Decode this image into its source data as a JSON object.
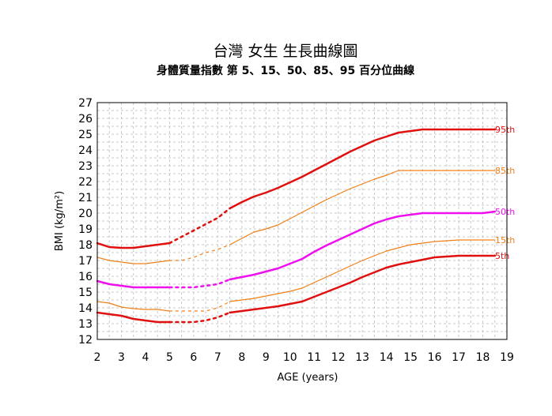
{
  "chart_data": {
    "type": "line",
    "title": "台灣  女生  生長曲線圖",
    "subtitle": "身體質量指數 第 5、15、50、85、95 百分位曲線",
    "xlabel": "AGE (years)",
    "ylabel": "BMI (kg/m²)",
    "xlim": [
      2,
      19
    ],
    "ylim": [
      12,
      27
    ],
    "x_ticks": [
      2,
      3,
      4,
      5,
      6,
      7,
      8,
      9,
      10,
      11,
      12,
      13,
      14,
      15,
      16,
      17,
      18,
      19
    ],
    "y_ticks": [
      12,
      13,
      14,
      15,
      16,
      17,
      18,
      19,
      20,
      21,
      22,
      23,
      24,
      25,
      26,
      27
    ],
    "grid": true,
    "dashed_interval": [
      5,
      7.5
    ],
    "colors": {
      "p95": "#e01010",
      "p85": "#f07f16",
      "p50": "#ee10ee",
      "p15": "#f07f16",
      "p5": "#e01010"
    },
    "series": [
      {
        "name": "95th",
        "color": "#e01010",
        "width": 2.5,
        "x": [
          2,
          2.5,
          3,
          3.5,
          4,
          4.5,
          5,
          5.5,
          6,
          6.5,
          7,
          7.5,
          8,
          8.5,
          9,
          9.5,
          10,
          10.5,
          11,
          11.5,
          12,
          12.5,
          13,
          13.5,
          14,
          14.5,
          15,
          15.5,
          16,
          16.5,
          17,
          17.5,
          18,
          18.5
        ],
        "y": [
          18.1,
          17.85,
          17.8,
          17.8,
          17.9,
          18.0,
          18.1,
          18.5,
          18.9,
          19.3,
          19.7,
          20.3,
          20.7,
          21.05,
          21.3,
          21.6,
          21.95,
          22.3,
          22.7,
          23.1,
          23.5,
          23.9,
          24.25,
          24.6,
          24.85,
          25.1,
          25.2,
          25.3,
          25.3,
          25.3,
          25.3,
          25.3,
          25.3,
          25.3
        ]
      },
      {
        "name": "85th",
        "color": "#f07f16",
        "width": 1.2,
        "x": [
          2,
          2.5,
          3,
          3.5,
          4,
          4.5,
          5,
          5.5,
          6,
          6.5,
          7,
          7.5,
          8,
          8.5,
          9,
          9.5,
          10,
          10.5,
          11,
          11.5,
          12,
          12.5,
          13,
          13.5,
          14,
          14.5,
          15,
          15.5,
          16,
          16.5,
          17,
          17.5,
          18,
          18.5
        ],
        "y": [
          17.2,
          17.0,
          16.9,
          16.8,
          16.8,
          16.9,
          17.0,
          17.0,
          17.2,
          17.5,
          17.7,
          18.0,
          18.4,
          18.8,
          19.0,
          19.25,
          19.65,
          20.05,
          20.45,
          20.85,
          21.2,
          21.55,
          21.85,
          22.15,
          22.4,
          22.7,
          22.7,
          22.7,
          22.7,
          22.7,
          22.7,
          22.7,
          22.7,
          22.7
        ]
      },
      {
        "name": "50th",
        "color": "#ee10ee",
        "width": 2.5,
        "x": [
          2,
          2.5,
          3,
          3.5,
          4,
          4.5,
          5,
          5.5,
          6,
          6.5,
          7,
          7.5,
          8,
          8.5,
          9,
          9.5,
          10,
          10.5,
          11,
          11.5,
          12,
          12.5,
          13,
          13.5,
          14,
          14.5,
          15,
          15.5,
          16,
          16.5,
          17,
          17.5,
          18,
          18.5
        ],
        "y": [
          15.7,
          15.5,
          15.4,
          15.3,
          15.3,
          15.3,
          15.3,
          15.3,
          15.3,
          15.4,
          15.5,
          15.8,
          15.95,
          16.1,
          16.3,
          16.5,
          16.8,
          17.1,
          17.55,
          17.95,
          18.3,
          18.65,
          19.0,
          19.35,
          19.6,
          19.8,
          19.9,
          20.0,
          20.0,
          20.0,
          20.0,
          20.0,
          20.0,
          20.1
        ]
      },
      {
        "name": "15th",
        "color": "#f07f16",
        "width": 1.2,
        "x": [
          2,
          2.5,
          3,
          3.5,
          4,
          4.5,
          5,
          5.5,
          6,
          6.5,
          7,
          7.5,
          8,
          8.5,
          9,
          9.5,
          10,
          10.5,
          11,
          11.5,
          12,
          12.5,
          13,
          13.5,
          14,
          14.5,
          15,
          15.5,
          16,
          16.5,
          17,
          17.5,
          18,
          18.5
        ],
        "y": [
          14.4,
          14.3,
          14.05,
          13.95,
          13.9,
          13.9,
          13.8,
          13.8,
          13.8,
          13.8,
          14.0,
          14.4,
          14.5,
          14.6,
          14.75,
          14.9,
          15.05,
          15.25,
          15.6,
          15.95,
          16.3,
          16.65,
          17.0,
          17.3,
          17.6,
          17.8,
          18.0,
          18.1,
          18.2,
          18.25,
          18.3,
          18.3,
          18.3,
          18.3
        ]
      },
      {
        "name": "5th",
        "color": "#e01010",
        "width": 2.5,
        "x": [
          2,
          2.5,
          3,
          3.5,
          4,
          4.5,
          5,
          5.5,
          6,
          6.5,
          7,
          7.5,
          8,
          8.5,
          9,
          9.5,
          10,
          10.5,
          11,
          11.5,
          12,
          12.5,
          13,
          13.5,
          14,
          14.5,
          15,
          15.5,
          16,
          16.5,
          17,
          17.5,
          18,
          18.5
        ],
        "y": [
          13.7,
          13.6,
          13.5,
          13.3,
          13.2,
          13.1,
          13.1,
          13.1,
          13.1,
          13.2,
          13.4,
          13.7,
          13.8,
          13.9,
          14.0,
          14.1,
          14.25,
          14.4,
          14.7,
          15.0,
          15.3,
          15.6,
          15.95,
          16.25,
          16.55,
          16.75,
          16.9,
          17.05,
          17.2,
          17.25,
          17.3,
          17.3,
          17.3,
          17.3
        ]
      }
    ]
  }
}
